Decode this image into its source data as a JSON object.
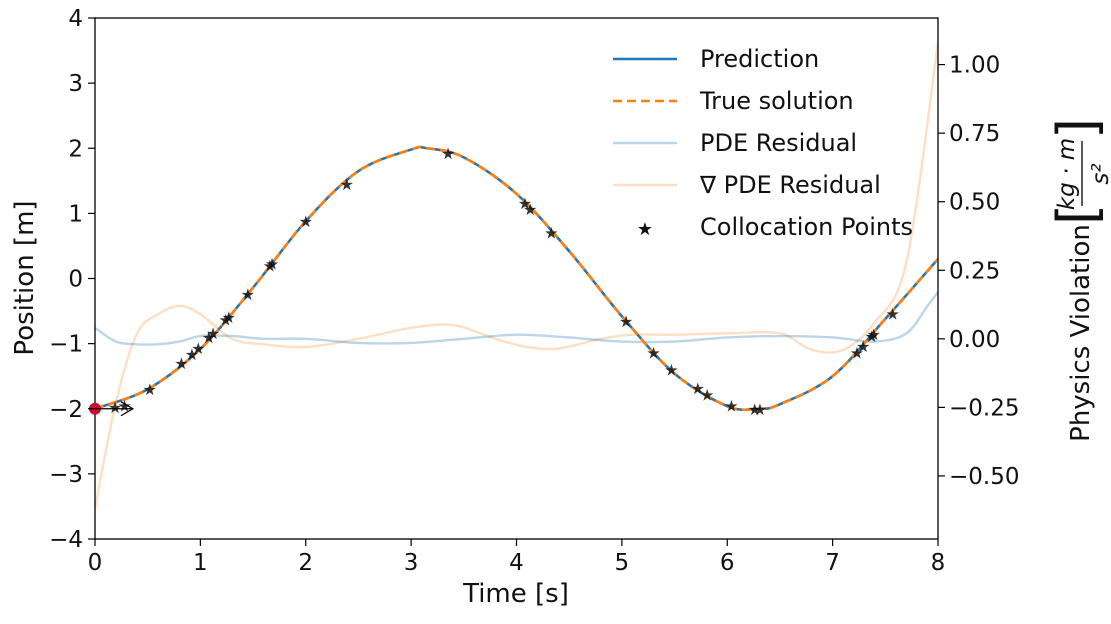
{
  "chart_data": {
    "type": "line",
    "xlabel": "Time [s]",
    "ylabel_left": "Position [m]",
    "ylabel_right": "Physics Violation",
    "ylabel_right_unit_numerator": "kg · m",
    "ylabel_right_unit_denominator": "s²",
    "xlim": [
      0,
      8
    ],
    "ylim_left": [
      -4,
      4
    ],
    "ylim_right": [
      -0.73,
      1.17
    ],
    "x_ticks": [
      0,
      1,
      2,
      3,
      4,
      5,
      6,
      7,
      8
    ],
    "x_tick_labels": [
      "0",
      "1",
      "2",
      "3",
      "4",
      "5",
      "6",
      "7",
      "8"
    ],
    "y_left_ticks": [
      -4,
      -3,
      -2,
      -1,
      0,
      1,
      2,
      3,
      4
    ],
    "y_left_tick_labels": [
      "−4",
      "−3",
      "−2",
      "−1",
      "0",
      "1",
      "2",
      "3",
      "4"
    ],
    "y_right_ticks": [
      -0.5,
      -0.25,
      0.0,
      0.25,
      0.5,
      0.75,
      1.0
    ],
    "y_right_tick_labels": [
      "−0.50",
      "−0.25",
      "0.00",
      "0.25",
      "0.50",
      "0.75",
      "1.00"
    ],
    "grid": false,
    "legend_position": "top-right",
    "series": [
      {
        "name": "Prediction",
        "color": "#1f77b4",
        "style": "solid",
        "axis": "left",
        "x": [
          0.0,
          0.5,
          1.0,
          1.5,
          2.0,
          2.5,
          3.0,
          3.15,
          3.5,
          4.0,
          4.5,
          5.0,
          5.5,
          6.0,
          6.3,
          6.5,
          7.0,
          7.5,
          8.0
        ],
        "y": [
          -2.0,
          -1.7,
          -1.08,
          -0.14,
          0.88,
          1.65,
          1.98,
          2.0,
          1.86,
          1.3,
          0.42,
          -0.58,
          -1.46,
          -1.96,
          -2.0,
          -1.93,
          -1.5,
          -0.62,
          0.3
        ]
      },
      {
        "name": "True solution",
        "color": "#ff7f0e",
        "style": "dashed",
        "axis": "left",
        "x": [
          0.0,
          0.5,
          1.0,
          1.5,
          2.0,
          2.5,
          3.0,
          3.15,
          3.5,
          4.0,
          4.5,
          5.0,
          5.5,
          6.0,
          6.3,
          6.5,
          7.0,
          7.5,
          8.0
        ],
        "y": [
          -2.0,
          -1.7,
          -1.08,
          -0.14,
          0.88,
          1.65,
          1.98,
          2.0,
          1.86,
          1.3,
          0.42,
          -0.58,
          -1.46,
          -1.96,
          -2.0,
          -1.93,
          -1.5,
          -0.62,
          0.3
        ]
      },
      {
        "name": "PDE Residual",
        "color": "#1f77b4",
        "style": "solid",
        "alpha": 0.3,
        "axis": "right",
        "x": [
          0.0,
          0.2,
          0.4,
          0.6,
          0.8,
          1.0,
          1.3,
          1.6,
          2.0,
          2.5,
          3.0,
          3.5,
          4.0,
          4.5,
          5.0,
          5.5,
          6.0,
          6.5,
          7.0,
          7.4,
          7.7,
          7.9,
          8.0
        ],
        "y": [
          0.04,
          -0.01,
          -0.02,
          -0.02,
          -0.01,
          0.01,
          0.01,
          0.0,
          0.0,
          -0.015,
          -0.015,
          0.0,
          0.015,
          0.005,
          -0.01,
          -0.01,
          0.005,
          0.01,
          0.005,
          -0.01,
          0.02,
          0.12,
          0.17
        ]
      },
      {
        "name": "∇ PDE Residual",
        "color": "#ff7f0e",
        "style": "solid",
        "alpha": 0.25,
        "axis": "right",
        "x": [
          0.0,
          0.2,
          0.4,
          0.6,
          0.8,
          1.0,
          1.3,
          1.6,
          2.0,
          2.5,
          3.0,
          3.4,
          3.8,
          4.1,
          4.4,
          4.8,
          5.1,
          5.5,
          6.0,
          6.5,
          6.8,
          7.1,
          7.4,
          7.7,
          8.0
        ],
        "y": [
          -0.62,
          -0.23,
          0.02,
          0.09,
          0.12,
          0.09,
          0.0,
          -0.02,
          -0.03,
          0.0,
          0.04,
          0.05,
          0.0,
          -0.03,
          -0.035,
          0.0,
          0.015,
          0.015,
          0.02,
          0.02,
          -0.04,
          -0.04,
          0.06,
          0.28,
          1.08
        ]
      }
    ],
    "collocation_points": {
      "name": "Collocation Points",
      "color": "#808080",
      "x": [
        0.19,
        0.28,
        0.52,
        0.82,
        0.92,
        0.98,
        1.08,
        1.12,
        1.24,
        1.27,
        1.45,
        1.66,
        1.68,
        2.0,
        2.39,
        3.35,
        4.08,
        4.13,
        4.33,
        5.04,
        5.3,
        5.47,
        5.72,
        5.81,
        6.04,
        6.26,
        6.31,
        7.23,
        7.29,
        7.37,
        7.39,
        7.57
      ],
      "y": [
        -1.97,
        -1.95,
        -1.7,
        -1.3,
        -1.16,
        -1.07,
        -0.9,
        -0.84,
        -0.63,
        -0.59,
        -0.24,
        0.2,
        0.23,
        0.88,
        1.45,
        1.93,
        1.16,
        1.07,
        0.71,
        -0.65,
        -1.14,
        -1.4,
        -1.68,
        -1.78,
        -1.95,
        -2.0,
        -2.0,
        -1.14,
        -1.04,
        -0.88,
        -0.85,
        -0.54
      ]
    },
    "initial_condition": {
      "x": 0.0,
      "y": -2.0,
      "color": "#c8102e",
      "arrow_dx": 0.36
    }
  }
}
